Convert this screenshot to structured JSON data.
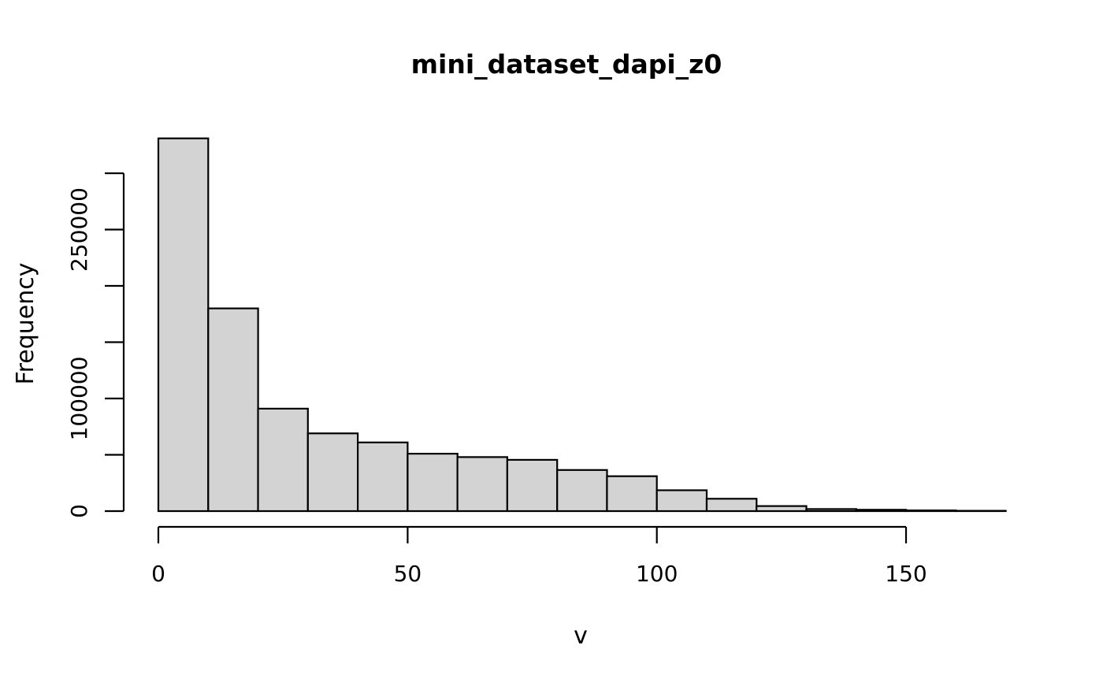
{
  "chart_data": {
    "type": "bar",
    "subtype": "histogram",
    "title": "mini_dataset_dapi_z0",
    "xlabel": "v",
    "ylabel": "Frequency",
    "bin_edges": [
      0,
      10,
      20,
      30,
      40,
      50,
      60,
      70,
      80,
      90,
      100,
      110,
      120,
      130,
      140,
      150,
      160,
      170
    ],
    "counts": [
      331000,
      180000,
      91000,
      69000,
      61000,
      51000,
      48000,
      45500,
      36500,
      31000,
      18500,
      11000,
      4500,
      1800,
      1200,
      600,
      250
    ],
    "xlim": [
      0,
      170
    ],
    "ylim": [
      0,
      300000
    ],
    "x_ticks": [
      0,
      50,
      100,
      150
    ],
    "x_tick_labels": [
      "0",
      "50",
      "100",
      "150"
    ],
    "y_ticks": [
      0,
      50000,
      100000,
      150000,
      200000,
      250000,
      300000
    ],
    "y_tick_labels": [
      {
        "value": 0,
        "label": "0"
      },
      {
        "value": 100000,
        "label": "100000"
      },
      {
        "value": 250000,
        "label": "250000"
      }
    ],
    "grid": false,
    "legend": null,
    "bar_fill_color": "#d3d3d3",
    "bar_stroke_color": "#000000",
    "axis_color": "#000000",
    "text_color": "#000000",
    "background_color": "#ffffff"
  }
}
